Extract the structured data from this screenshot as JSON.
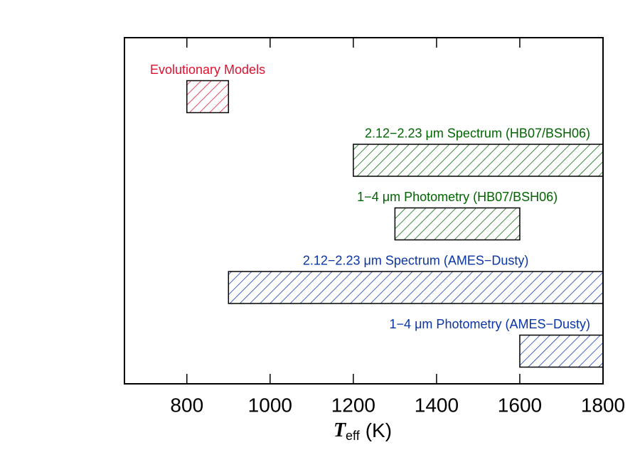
{
  "chart_data": {
    "type": "range_bar",
    "bars": [
      {
        "name": "Evolutionary Models",
        "start": 800,
        "end": 900,
        "color": "#e0102f"
      },
      {
        "name": "2.12−2.23 μm Spectrum (HB07/BSH06)",
        "start": 1200,
        "end": 1800,
        "color": "#006400"
      },
      {
        "name": "1−4 μm Photometry (HB07/BSH06)",
        "start": 1300,
        "end": 1600,
        "color": "#006400"
      },
      {
        "name": "2.12−2.23 μm Spectrum (AMES−Dusty)",
        "start": 900,
        "end": 1800,
        "color": "#0a35a8"
      },
      {
        "name": "1−4 μm Photometry (AMES−Dusty)",
        "start": 1600,
        "end": 1800,
        "color": "#0a35a8"
      }
    ],
    "xlabel": {
      "symbol": "T",
      "subscript": "eff",
      "unit": "(K)"
    },
    "xlim": [
      650,
      1800
    ],
    "xticks": [
      800,
      1000,
      1200,
      1400,
      1600,
      1800
    ]
  }
}
